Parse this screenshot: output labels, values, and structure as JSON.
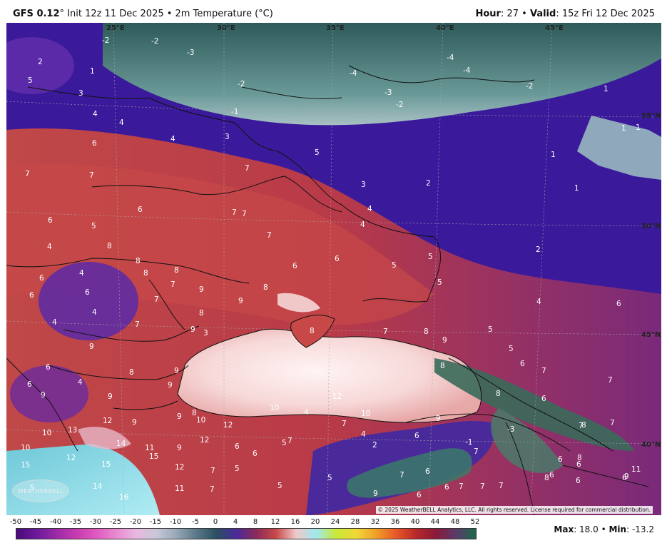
{
  "header": {
    "model": "GFS 0.12",
    "degree": "°",
    "init_text": " Init 12z 11 Dec 2025 • 2m Temperature (°C)",
    "hour_label": "Hour",
    "hour_value": ": 27 • ",
    "valid_label": "Valid",
    "valid_value": ": 15z Fri 12 Dec 2025"
  },
  "map": {
    "lon_labels": [
      "25°E",
      "30°E",
      "35°E",
      "40°E",
      "45°E"
    ],
    "lat_labels": [
      "55°N",
      "50°N",
      "45°N",
      "40°N"
    ],
    "copyright": "© 2025 WeatherBELL Analytics, LLC. All rights reserved. License required for commercial distribution.",
    "logo": "WEATHERBELL",
    "temperature_labels": [
      {
        "v": "-2"
      },
      {
        "v": "-2"
      },
      {
        "v": "-3"
      },
      {
        "v": "-2"
      },
      {
        "v": "-1"
      },
      {
        "v": "-4"
      },
      {
        "v": "-4"
      },
      {
        "v": "-4"
      },
      {
        "v": "-3"
      },
      {
        "v": "-2"
      },
      {
        "v": "-2"
      },
      {
        "v": "2"
      },
      {
        "v": "1"
      },
      {
        "v": "5"
      },
      {
        "v": "3"
      },
      {
        "v": "4"
      },
      {
        "v": "4"
      },
      {
        "v": "6"
      },
      {
        "v": "4"
      },
      {
        "v": "3"
      },
      {
        "v": "7"
      },
      {
        "v": "7"
      },
      {
        "v": "5"
      },
      {
        "v": "7"
      },
      {
        "v": "1"
      },
      {
        "v": "1"
      },
      {
        "v": "1"
      },
      {
        "v": "1"
      },
      {
        "v": "1"
      },
      {
        "v": "3"
      },
      {
        "v": "2"
      },
      {
        "v": "4"
      },
      {
        "v": "4"
      },
      {
        "v": "6"
      },
      {
        "v": "5"
      },
      {
        "v": "7"
      },
      {
        "v": "7"
      },
      {
        "v": "7"
      },
      {
        "v": "6"
      },
      {
        "v": "6"
      },
      {
        "v": "6"
      },
      {
        "v": "5"
      },
      {
        "v": "5"
      },
      {
        "v": "2"
      },
      {
        "v": "5"
      },
      {
        "v": "8"
      },
      {
        "v": "8"
      },
      {
        "v": "8"
      },
      {
        "v": "8"
      },
      {
        "v": "7"
      },
      {
        "v": "9"
      },
      {
        "v": "9"
      },
      {
        "v": "4"
      },
      {
        "v": "6"
      },
      {
        "v": "4"
      },
      {
        "v": "6"
      },
      {
        "v": "6"
      },
      {
        "v": "4"
      },
      {
        "v": "4"
      },
      {
        "v": "7"
      },
      {
        "v": "8"
      },
      {
        "v": "7"
      },
      {
        "v": "9"
      },
      {
        "v": "3"
      },
      {
        "v": "8"
      },
      {
        "v": "9"
      },
      {
        "v": "8"
      },
      {
        "v": "7"
      },
      {
        "v": "4"
      },
      {
        "v": "6"
      },
      {
        "v": "5"
      },
      {
        "v": "5"
      },
      {
        "v": "6"
      },
      {
        "v": "7"
      },
      {
        "v": "8"
      },
      {
        "v": "9"
      },
      {
        "v": "8"
      },
      {
        "v": "8"
      },
      {
        "v": "7"
      },
      {
        "v": "9"
      },
      {
        "v": "9"
      },
      {
        "v": "8"
      },
      {
        "v": "6"
      },
      {
        "v": "6"
      },
      {
        "v": "9"
      },
      {
        "v": "9"
      },
      {
        "v": "12"
      },
      {
        "v": "10"
      },
      {
        "v": "10"
      },
      {
        "v": "9"
      },
      {
        "v": "8"
      },
      {
        "v": "4"
      },
      {
        "v": "6"
      },
      {
        "v": "7"
      },
      {
        "v": "7"
      },
      {
        "v": "8"
      },
      {
        "v": "9"
      },
      {
        "v": "12"
      },
      {
        "v": "9"
      },
      {
        "v": "10"
      },
      {
        "v": "12"
      },
      {
        "v": "12"
      },
      {
        "v": "4"
      },
      {
        "v": "7"
      },
      {
        "v": "4"
      },
      {
        "v": "2"
      },
      {
        "v": "-3"
      },
      {
        "v": "-1"
      },
      {
        "v": "10"
      },
      {
        "v": "13"
      },
      {
        "v": "14"
      },
      {
        "v": "10"
      },
      {
        "v": "12"
      },
      {
        "v": "15"
      },
      {
        "v": "15"
      },
      {
        "v": "15"
      },
      {
        "v": "14"
      },
      {
        "v": "16"
      },
      {
        "v": "11"
      },
      {
        "v": "9"
      },
      {
        "v": "12"
      },
      {
        "v": "11"
      },
      {
        "v": "6"
      },
      {
        "v": "6"
      },
      {
        "v": "5"
      },
      {
        "v": "7"
      },
      {
        "v": "5"
      },
      {
        "v": "7"
      },
      {
        "v": "5"
      },
      {
        "v": "6"
      },
      {
        "v": "7"
      },
      {
        "v": "6"
      },
      {
        "v": "7"
      },
      {
        "v": "7"
      },
      {
        "v": "7"
      },
      {
        "v": "6"
      },
      {
        "v": "9"
      },
      {
        "v": "6"
      },
      {
        "v": "6"
      },
      {
        "v": "6"
      },
      {
        "v": "11"
      },
      {
        "v": "6"
      },
      {
        "v": "6"
      },
      {
        "v": "8"
      },
      {
        "v": "7"
      },
      {
        "v": "8"
      },
      {
        "v": "5"
      },
      {
        "v": "7"
      },
      {
        "v": "9"
      },
      {
        "v": "6"
      },
      {
        "v": "5"
      },
      {
        "v": "6"
      },
      {
        "v": "12"
      },
      {
        "v": "11"
      },
      {
        "v": "14"
      },
      {
        "v": "15"
      },
      {
        "v": "6"
      },
      {
        "v": "8"
      },
      {
        "v": "6"
      },
      {
        "v": "4"
      },
      {
        "v": "6"
      },
      {
        "v": "9"
      },
      {
        "v": "15"
      }
    ]
  },
  "legend": {
    "ticks": [
      "-50",
      "-45",
      "-40",
      "-35",
      "-30",
      "-25",
      "-20",
      "-15",
      "-10",
      "-5",
      "0",
      "4",
      "8",
      "12",
      "16",
      "20",
      "24",
      "28",
      "32",
      "36",
      "40",
      "44",
      "48",
      "52"
    ],
    "colors": [
      "#4a0a7a",
      "#6a1a9a",
      "#9a2aa8",
      "#c83ab0",
      "#e05ac0",
      "#e88ad0",
      "#e8b8e0",
      "#c8c8d8",
      "#98a8b8",
      "#5a7888",
      "#2a5060",
      "#4a2a9a",
      "#8a2a5a",
      "#c84a4a",
      "#f0c8c8",
      "#a0e8f0",
      "#c8e838",
      "#f0d838",
      "#f0a028",
      "#e85828",
      "#b82828",
      "#8a1a3a",
      "#5a3a6a",
      "#1a6a4a"
    ]
  },
  "footer": {
    "max_label": "Max",
    "max_value": ": 18.0 • ",
    "min_label": "Min",
    "min_value": ": -13.2"
  }
}
